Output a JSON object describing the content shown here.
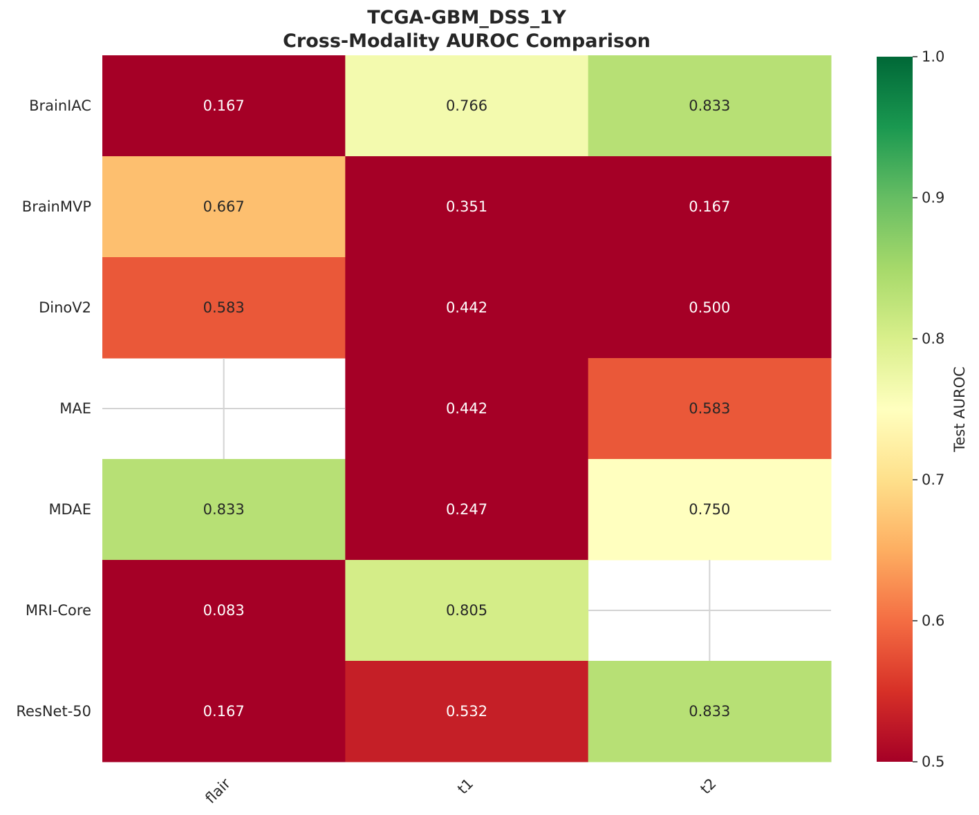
{
  "chart_data": {
    "type": "heatmap",
    "title": "TCGA-GBM_DSS_1Y",
    "subtitle": "Cross-Modality AUROC Comparison",
    "xlabel": "",
    "ylabel": "",
    "columns": [
      "flair",
      "t1",
      "t2"
    ],
    "rows": [
      "BrainIAC",
      "BrainMVP",
      "DinoV2",
      "MAE",
      "MDAE",
      "MRI-Core",
      "ResNet-50"
    ],
    "values": [
      [
        0.167,
        0.766,
        0.833
      ],
      [
        0.667,
        0.351,
        0.167
      ],
      [
        0.583,
        0.442,
        0.5
      ],
      [
        null,
        0.442,
        0.583
      ],
      [
        0.833,
        0.247,
        0.75
      ],
      [
        0.083,
        0.805,
        null
      ],
      [
        0.167,
        0.532,
        0.833
      ]
    ],
    "value_labels": [
      [
        "0.167",
        "0.766",
        "0.833"
      ],
      [
        "0.667",
        "0.351",
        "0.167"
      ],
      [
        "0.583",
        "0.442",
        "0.500"
      ],
      [
        "",
        "0.442",
        "0.583"
      ],
      [
        "0.833",
        "0.247",
        "0.750"
      ],
      [
        "0.083",
        "0.805",
        ""
      ],
      [
        "0.167",
        "0.532",
        "0.833"
      ]
    ],
    "colormap": "RdYlGn",
    "vmin": 0.5,
    "vmax": 1.0,
    "colorbar": {
      "label": "Test AUROC",
      "ticks": [
        0.5,
        0.6,
        0.7,
        0.8,
        0.9,
        1.0
      ],
      "tick_labels": [
        "0.5",
        "0.6",
        "0.7",
        "0.8",
        "0.9",
        "1.0"
      ]
    },
    "grid": true
  }
}
